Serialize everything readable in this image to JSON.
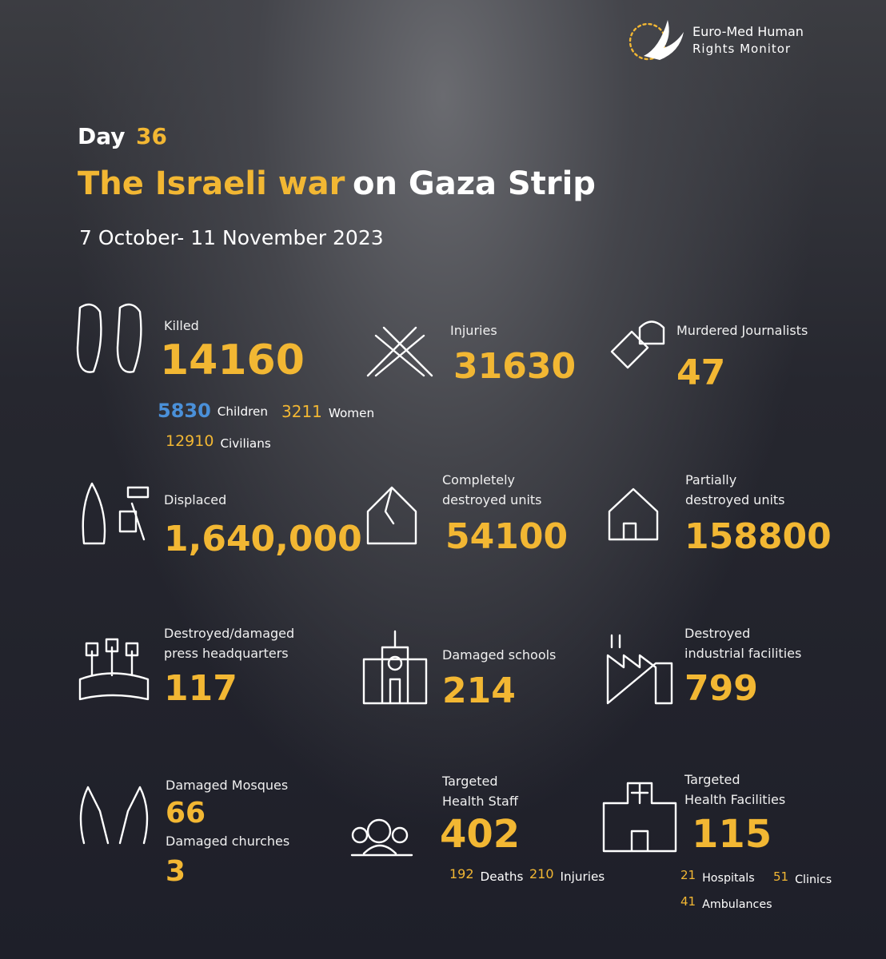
{
  "header": {
    "org_name": [
      "Euro-Med Human",
      "Rights Monitor"
    ],
    "day_label": "Day",
    "day_number": "36",
    "title_highlight": "The Israeli war",
    "title_rest": "on Gaza Strip",
    "date_range": "7 October- 11 November 2023"
  },
  "stats": [
    {
      "label": [
        "Killed"
      ],
      "value": "14160",
      "details": [
        {
          "value": "5830",
          "label": "Children"
        },
        {
          "value": "3211",
          "label": "Women"
        },
        {
          "value": "12910",
          "label": "Civilians"
        }
      ]
    },
    {
      "label": [
        "Injuries"
      ],
      "value": "31630"
    },
    {
      "label": [
        "Murdered Journalists"
      ],
      "value": "47"
    },
    {
      "label": [
        "Displaced"
      ],
      "value": "1,640,000"
    },
    {
      "label": [
        "Completely",
        "destroyed  units"
      ],
      "value": "54100"
    },
    {
      "label": [
        "Partially",
        "destroyed units"
      ],
      "value": "158800"
    },
    {
      "label": [
        "Destroyed/damaged",
        "press headquarters"
      ],
      "value": "117"
    },
    {
      "label": [
        "Damaged schools"
      ],
      "value": "214"
    },
    {
      "label": [
        "Destroyed",
        "industrial facilities"
      ],
      "value": "799"
    },
    {
      "label": [
        "Damaged Mosques"
      ],
      "value": "66"
    },
    {
      "label": [
        "Damaged churches"
      ],
      "value": "3"
    },
    {
      "label": [
        "Targeted",
        "Health Staff"
      ],
      "value": "402",
      "details": [
        {
          "value": "192",
          "label": "Deaths"
        },
        {
          "value": "210",
          "label": "Injuries"
        }
      ]
    },
    {
      "label": [
        "Targeted",
        "Health Facilities"
      ],
      "value": "115",
      "details": [
        {
          "value": "21",
          "label": "Hospitals"
        },
        {
          "value": "51",
          "label": "Clinics"
        },
        {
          "value": "41",
          "label": "Ambulances"
        }
      ]
    }
  ]
}
